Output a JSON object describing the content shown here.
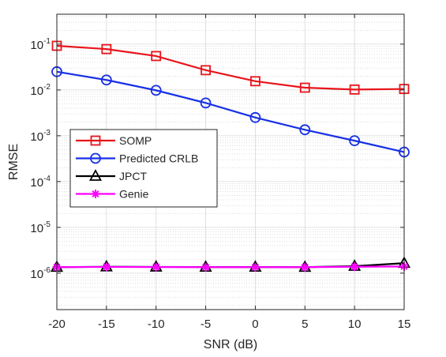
{
  "chart_data": {
    "type": "line",
    "xlabel": "SNR (dB)",
    "ylabel": "RMSE",
    "x": [
      -20,
      -15,
      -10,
      -5,
      0,
      5,
      10,
      15
    ],
    "xlim": [
      -20,
      15
    ],
    "ylim": [
      1.6e-07,
      0.45
    ],
    "yscale": "log",
    "grid": true,
    "minor_grid": true,
    "legend_position": "center-left",
    "xticks": [
      -20,
      -15,
      -10,
      -5,
      0,
      5,
      10,
      15
    ],
    "yticks": [
      {
        "value": 1e-06,
        "base": "10",
        "exp": "-6"
      },
      {
        "value": 1e-05,
        "base": "10",
        "exp": "-5"
      },
      {
        "value": 0.0001,
        "base": "10",
        "exp": "-4"
      },
      {
        "value": 0.001,
        "base": "10",
        "exp": "-3"
      },
      {
        "value": 0.01,
        "base": "10",
        "exp": "-2"
      },
      {
        "value": 0.1,
        "base": "10",
        "exp": "-1"
      }
    ],
    "series": [
      {
        "name": "SOMP",
        "color": "#e8141b",
        "marker": "square",
        "values": [
          0.092,
          0.078,
          0.055,
          0.027,
          0.0155,
          0.0112,
          0.0102,
          0.0105
        ]
      },
      {
        "name": "Predicted CRLB",
        "color": "#1730e6",
        "marker": "circle",
        "values": [
          0.025,
          0.0165,
          0.0098,
          0.0052,
          0.0025,
          0.00135,
          0.00078,
          0.00044
        ]
      },
      {
        "name": "JPCT",
        "color": "#000000",
        "marker": "triangle",
        "values": [
          1.35e-06,
          1.38e-06,
          1.37e-06,
          1.36e-06,
          1.36e-06,
          1.35e-06,
          1.42e-06,
          1.65e-06
        ]
      },
      {
        "name": "Genie",
        "color": "#ff00ff",
        "marker": "asterisk",
        "values": [
          1.35e-06,
          1.37e-06,
          1.36e-06,
          1.35e-06,
          1.35e-06,
          1.35e-06,
          1.38e-06,
          1.4e-06
        ]
      }
    ]
  }
}
